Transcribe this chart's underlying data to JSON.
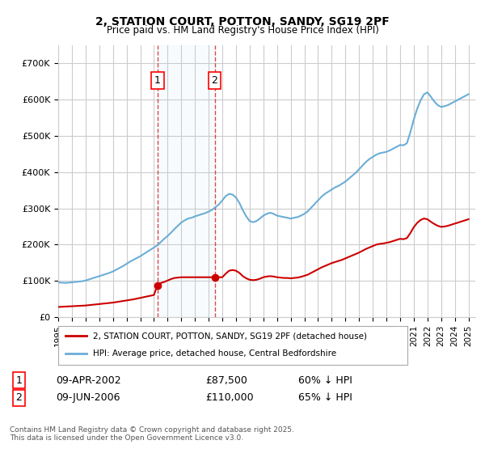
{
  "title": "2, STATION COURT, POTTON, SANDY, SG19 2PF",
  "subtitle": "Price paid vs. HM Land Registry's House Price Index (HPI)",
  "ylabel": "",
  "xlabel": "",
  "ylim": [
    0,
    750000
  ],
  "xlim_start": 1995.0,
  "xlim_end": 2025.5,
  "yticks": [
    0,
    100000,
    200000,
    300000,
    400000,
    500000,
    600000,
    700000
  ],
  "ytick_labels": [
    "£0",
    "£100K",
    "£200K",
    "£300K",
    "£400K",
    "£500K",
    "£600K",
    "£700K"
  ],
  "xticks": [
    1995,
    1996,
    1997,
    1998,
    1999,
    2000,
    2001,
    2002,
    2003,
    2004,
    2005,
    2006,
    2007,
    2008,
    2009,
    2010,
    2011,
    2012,
    2013,
    2014,
    2015,
    2016,
    2017,
    2018,
    2019,
    2020,
    2021,
    2022,
    2023,
    2024,
    2025
  ],
  "background_color": "#ffffff",
  "plot_bg_color": "#ffffff",
  "grid_color": "#cccccc",
  "hpi_color": "#6baed6",
  "price_color": "#cc0000",
  "sale1_date": 2002.27,
  "sale1_price": 87500,
  "sale1_label": "1",
  "sale2_date": 2006.44,
  "sale2_price": 110000,
  "sale2_label": "2",
  "legend_line1": "2, STATION COURT, POTTON, SANDY, SG19 2PF (detached house)",
  "legend_line2": "HPI: Average price, detached house, Central Bedfordshire",
  "footnote1": "09-APR-2002                   £87,500              60% ↓ HPI",
  "footnote2": "09-JUN-2006                  £110,000             65% ↓ HPI",
  "footnote_license": "Contains HM Land Registry data © Crown copyright and database right 2025.\nThis data is licensed under the Open Government Licence v3.0.",
  "hpi_x": [
    1995.0,
    1995.25,
    1995.5,
    1995.75,
    1996.0,
    1996.25,
    1996.5,
    1996.75,
    1997.0,
    1997.25,
    1997.5,
    1997.75,
    1998.0,
    1998.25,
    1998.5,
    1998.75,
    1999.0,
    1999.25,
    1999.5,
    1999.75,
    2000.0,
    2000.25,
    2000.5,
    2000.75,
    2001.0,
    2001.25,
    2001.5,
    2001.75,
    2002.0,
    2002.25,
    2002.5,
    2002.75,
    2003.0,
    2003.25,
    2003.5,
    2003.75,
    2004.0,
    2004.25,
    2004.5,
    2004.75,
    2005.0,
    2005.25,
    2005.5,
    2005.75,
    2006.0,
    2006.25,
    2006.5,
    2006.75,
    2007.0,
    2007.25,
    2007.5,
    2007.75,
    2008.0,
    2008.25,
    2008.5,
    2008.75,
    2009.0,
    2009.25,
    2009.5,
    2009.75,
    2010.0,
    2010.25,
    2010.5,
    2010.75,
    2011.0,
    2011.25,
    2011.5,
    2011.75,
    2012.0,
    2012.25,
    2012.5,
    2012.75,
    2013.0,
    2013.25,
    2013.5,
    2013.75,
    2014.0,
    2014.25,
    2014.5,
    2014.75,
    2015.0,
    2015.25,
    2015.5,
    2015.75,
    2016.0,
    2016.25,
    2016.5,
    2016.75,
    2017.0,
    2017.25,
    2017.5,
    2017.75,
    2018.0,
    2018.25,
    2018.5,
    2018.75,
    2019.0,
    2019.25,
    2019.5,
    2019.75,
    2020.0,
    2020.25,
    2020.5,
    2020.75,
    2021.0,
    2021.25,
    2021.5,
    2021.75,
    2022.0,
    2022.25,
    2022.5,
    2022.75,
    2023.0,
    2023.25,
    2023.5,
    2023.75,
    2024.0,
    2024.25,
    2024.5,
    2024.75,
    2025.0
  ],
  "hpi_y": [
    96000,
    95000,
    94500,
    95000,
    96000,
    97000,
    98000,
    99000,
    101000,
    104000,
    107000,
    110000,
    113000,
    116000,
    119000,
    122000,
    126000,
    131000,
    136000,
    141000,
    147000,
    153000,
    158000,
    163000,
    168000,
    174000,
    180000,
    186000,
    192000,
    198000,
    207000,
    216000,
    224000,
    233000,
    243000,
    252000,
    261000,
    267000,
    272000,
    274000,
    278000,
    281000,
    284000,
    287000,
    291000,
    296000,
    303000,
    311000,
    322000,
    334000,
    340000,
    338000,
    330000,
    315000,
    295000,
    278000,
    265000,
    262000,
    265000,
    272000,
    280000,
    285000,
    288000,
    285000,
    280000,
    278000,
    276000,
    274000,
    272000,
    274000,
    276000,
    280000,
    285000,
    292000,
    302000,
    312000,
    322000,
    332000,
    340000,
    346000,
    352000,
    358000,
    362000,
    368000,
    374000,
    382000,
    390000,
    398000,
    408000,
    418000,
    428000,
    436000,
    442000,
    448000,
    452000,
    454000,
    456000,
    460000,
    465000,
    470000,
    475000,
    474000,
    480000,
    510000,
    545000,
    575000,
    598000,
    615000,
    620000,
    608000,
    595000,
    585000,
    580000,
    582000,
    585000,
    590000,
    595000,
    600000,
    605000,
    610000,
    615000
  ],
  "price_x": [
    1995.0,
    1995.25,
    1995.5,
    1995.75,
    1996.0,
    1996.25,
    1996.5,
    1996.75,
    1997.0,
    1997.25,
    1997.5,
    1997.75,
    1998.0,
    1998.25,
    1998.5,
    1998.75,
    1999.0,
    1999.25,
    1999.5,
    1999.75,
    2000.0,
    2000.25,
    2000.5,
    2000.75,
    2001.0,
    2001.25,
    2001.5,
    2001.75,
    2002.0,
    2002.25,
    2002.5,
    2002.75,
    2003.0,
    2003.25,
    2003.5,
    2003.75,
    2004.0,
    2004.25,
    2004.5,
    2004.75,
    2005.0,
    2005.25,
    2005.5,
    2005.75,
    2006.0,
    2006.25,
    2006.5,
    2006.75,
    2007.0,
    2007.25,
    2007.5,
    2007.75,
    2008.0,
    2008.25,
    2008.5,
    2008.75,
    2009.0,
    2009.25,
    2009.5,
    2009.75,
    2010.0,
    2010.25,
    2010.5,
    2010.75,
    2011.0,
    2011.25,
    2011.5,
    2011.75,
    2012.0,
    2012.25,
    2012.5,
    2012.75,
    2013.0,
    2013.25,
    2013.5,
    2013.75,
    2014.0,
    2014.25,
    2014.5,
    2014.75,
    2015.0,
    2015.25,
    2015.5,
    2015.75,
    2016.0,
    2016.25,
    2016.5,
    2016.75,
    2017.0,
    2017.25,
    2017.5,
    2017.75,
    2018.0,
    2018.25,
    2018.5,
    2018.75,
    2019.0,
    2019.25,
    2019.5,
    2019.75,
    2020.0,
    2020.25,
    2020.5,
    2020.75,
    2021.0,
    2021.25,
    2021.5,
    2021.75,
    2022.0,
    2022.25,
    2022.5,
    2022.75,
    2023.0,
    2023.25,
    2023.5,
    2023.75,
    2024.0,
    2024.25,
    2024.5,
    2024.75,
    2025.0
  ],
  "price_y": [
    28000,
    28500,
    29000,
    29500,
    30000,
    30500,
    31000,
    31500,
    32000,
    33000,
    34000,
    35000,
    36000,
    37000,
    38000,
    39000,
    40000,
    41500,
    43000,
    44500,
    46000,
    47500,
    49000,
    51000,
    53000,
    55000,
    57000,
    59000,
    61000,
    87500,
    94000,
    97000,
    101000,
    105000,
    108000,
    109000,
    110000,
    110000,
    110000,
    110000,
    110000,
    110000,
    110000,
    110000,
    110000,
    110000,
    110000,
    110000,
    110000,
    120000,
    128000,
    130000,
    128000,
    122000,
    113000,
    107000,
    103000,
    102000,
    103000,
    106000,
    110000,
    112000,
    113000,
    112000,
    110000,
    109000,
    108000,
    108000,
    107000,
    108000,
    109000,
    111000,
    114000,
    117000,
    122000,
    127000,
    132000,
    137000,
    141000,
    145000,
    149000,
    152000,
    155000,
    158000,
    162000,
    166000,
    170000,
    174000,
    178000,
    183000,
    188000,
    192000,
    196000,
    200000,
    202000,
    203000,
    205000,
    207000,
    210000,
    213000,
    216000,
    215000,
    218000,
    232000,
    248000,
    260000,
    268000,
    272000,
    270000,
    263000,
    257000,
    252000,
    249000,
    250000,
    252000,
    255000,
    258000,
    261000,
    264000,
    267000,
    270000
  ]
}
